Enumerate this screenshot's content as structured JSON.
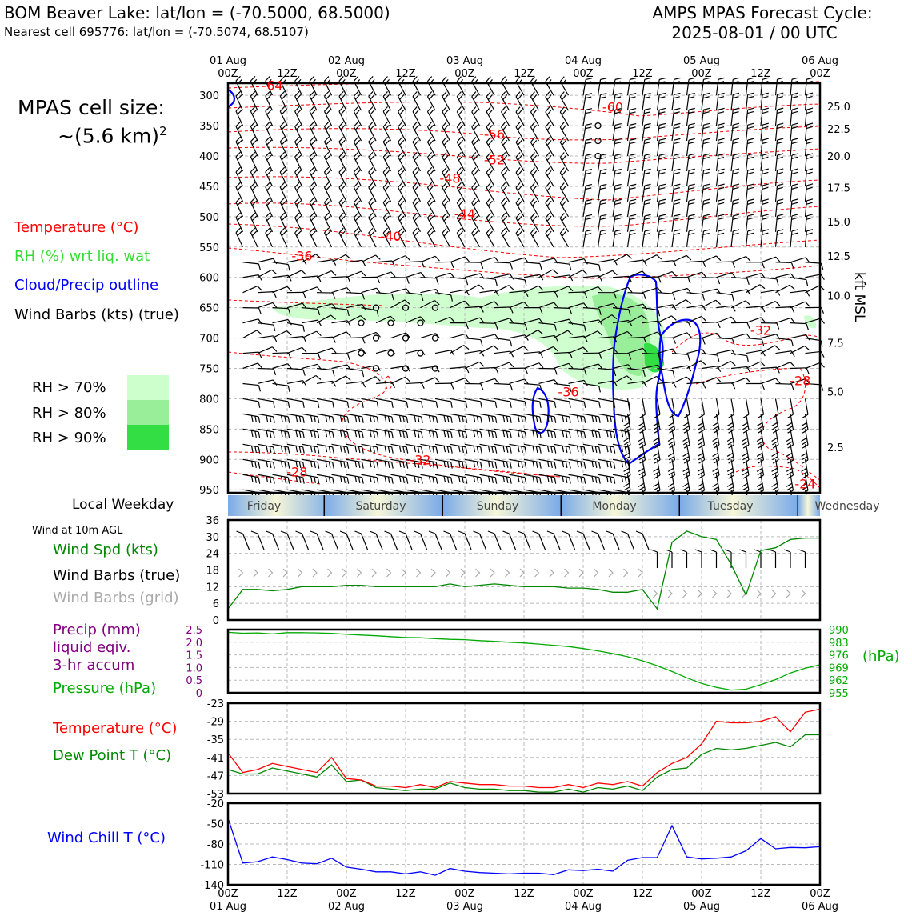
{
  "header": {
    "title_left": "BOM Beaver Lake: lat/lon = (-70.5000, 68.5000)",
    "subtitle_left": "Nearest cell 695776: lat/lon = (-70.5074, 68.5107)",
    "title_right_1": "AMPS MPAS Forecast Cycle:",
    "title_right_2": "2025-08-01 / 00 UTC"
  },
  "left_legend": {
    "cell_size_1": "MPAS cell size:",
    "cell_size_2": "~(5.6 km)",
    "cell_size_sup": "2",
    "temperature": "Temperature (°C)",
    "rh": "RH (%) wrt liq. wat",
    "cloud": "Cloud/Precip outline",
    "wind": "Wind Barbs (kts) (true)",
    "rh70": "RH > 70%",
    "rh80": "RH > 80%",
    "rh90": "RH > 90%",
    "local_weekday": "Local Weekday",
    "wind10": "Wind at 10m AGL",
    "wind_spd": "Wind Spd (kts)",
    "wind_barbs_true": "Wind Barbs (true)",
    "wind_barbs_grid": "Wind Barbs (grid)",
    "precip_1": "Precip (mm)",
    "precip_2": "liquid eqiv.",
    "precip_3": "3-hr accum",
    "pressure": "Pressure (hPa)",
    "temp2": "Temperature (°C)",
    "dewpoint": "Dew Point T (°C)",
    "windchill": "Wind Chill T (°C)",
    "hpa_unit": "(hPa)",
    "kft_label": "kft MSL"
  },
  "colors": {
    "temperature": "#ff0000",
    "rh_text": "#33dd33",
    "cloud": "#0000ff",
    "wind_spd": "#008800",
    "grid_barbs": "#aaaaaa",
    "precip": "#800080",
    "pressure": "#00aa00",
    "windchill": "#0000ff",
    "rh70": "#ccffcc",
    "rh80": "#99ee99",
    "rh90": "#33dd44"
  },
  "time_axis": {
    "top_dates": [
      "01 Aug",
      "",
      "02 Aug",
      "",
      "03 Aug",
      "",
      "04 Aug",
      "",
      "05 Aug",
      "",
      "06 Aug"
    ],
    "hours": [
      "00Z",
      "12Z",
      "00Z",
      "12Z",
      "00Z",
      "12Z",
      "00Z",
      "12Z",
      "00Z",
      "12Z",
      "00Z"
    ],
    "bottom_dates": [
      "01 Aug",
      "",
      "02 Aug",
      "",
      "03 Aug",
      "",
      "04 Aug",
      "",
      "05 Aug",
      "",
      "06 Aug"
    ]
  },
  "weekdays": [
    "Friday",
    "Saturday",
    "Sunday",
    "Monday",
    "Tuesday",
    "Wednesday"
  ],
  "chart_data": [
    {
      "type": "heatmap",
      "name": "time-height cross section",
      "y_pressure_ticks": [
        300,
        350,
        400,
        450,
        500,
        550,
        600,
        650,
        700,
        750,
        800,
        850,
        900,
        950
      ],
      "y_kft_ticks": [
        "25.0",
        "22.5",
        "20.0",
        "17.5",
        "15.0",
        "12.5",
        "10.0",
        "7.5",
        "5.0",
        "2.5"
      ],
      "y_kft_pressures": [
        318,
        355,
        400,
        452,
        508,
        565,
        630,
        708,
        788,
        880
      ],
      "ylim_hpa": [
        280,
        955
      ],
      "xlim_hours": [
        0,
        120
      ],
      "temperature_contour_labels": [
        {
          "label": "-64",
          "t": 9,
          "p": 283
        },
        {
          "label": "-60",
          "t": 78,
          "p": 319
        },
        {
          "label": "-56",
          "t": 54,
          "p": 364
        },
        {
          "label": "-52",
          "t": 54,
          "p": 406
        },
        {
          "label": "-48",
          "t": 45,
          "p": 436
        },
        {
          "label": "-44",
          "t": 48,
          "p": 495
        },
        {
          "label": "-40",
          "t": 33,
          "p": 532
        },
        {
          "label": "-36",
          "t": 15,
          "p": 564
        },
        {
          "label": "-36",
          "t": 69,
          "p": 788
        },
        {
          "label": "-32",
          "t": 108,
          "p": 687
        },
        {
          "label": "-28",
          "t": 116,
          "p": 770
        },
        {
          "label": "-32",
          "t": 39,
          "p": 900
        },
        {
          "label": "-28",
          "t": 14,
          "p": 920
        },
        {
          "label": "-24",
          "t": 117,
          "p": 940
        }
      ]
    },
    {
      "type": "line",
      "name": "wind speed",
      "unit": "kts",
      "ylim": [
        0,
        36
      ],
      "yticks": [
        0,
        6,
        12,
        18,
        24,
        30,
        36
      ],
      "x_hours": [
        0,
        3,
        6,
        9,
        12,
        15,
        18,
        21,
        24,
        27,
        30,
        33,
        36,
        39,
        42,
        45,
        48,
        51,
        54,
        57,
        60,
        63,
        66,
        69,
        72,
        75,
        78,
        81,
        84,
        87,
        90,
        93,
        96,
        99,
        102,
        105,
        108,
        111,
        114,
        117,
        120
      ],
      "values": [
        4,
        11,
        11,
        10.5,
        11,
        12,
        12,
        12,
        12.5,
        12.5,
        12,
        12,
        12,
        12,
        12,
        13,
        12,
        12.5,
        13,
        12.5,
        12,
        12,
        12,
        11.5,
        11.5,
        11,
        10,
        10,
        11,
        4,
        28,
        32,
        30,
        29,
        20,
        9,
        25,
        26,
        29,
        29.5,
        29.5
      ]
    },
    {
      "type": "line",
      "name": "pressure and precip",
      "precip_unit": "mm",
      "precip_ylim": [
        0,
        2.5
      ],
      "precip_yticks": [
        "0",
        "0.5",
        "1.0",
        "1.5",
        "2.0",
        "2.5"
      ],
      "pressure_unit": "hPa",
      "pressure_ylim": [
        955,
        990
      ],
      "pressure_yticks": [
        955,
        962,
        969,
        976,
        983,
        990
      ],
      "x_hours": [
        0,
        3,
        6,
        9,
        12,
        15,
        18,
        21,
        24,
        27,
        30,
        33,
        36,
        39,
        42,
        45,
        48,
        51,
        54,
        57,
        60,
        63,
        66,
        69,
        72,
        75,
        78,
        81,
        84,
        87,
        90,
        93,
        96,
        99,
        102,
        105,
        108,
        111,
        114,
        117,
        120
      ],
      "pressure": [
        988.5,
        988,
        988.2,
        987.6,
        988.3,
        988.3,
        988.2,
        987.9,
        987.4,
        987,
        986.6,
        986.1,
        985.6,
        985.5,
        985,
        984.6,
        984.4,
        983.9,
        983.5,
        983,
        982.6,
        982,
        981.3,
        980.6,
        979.5,
        978.2,
        976.7,
        975,
        972.7,
        970,
        966.8,
        963.3,
        960.2,
        958,
        956.5,
        957,
        959.5,
        962.3,
        966,
        968.6,
        970.5
      ],
      "precip": []
    },
    {
      "type": "line",
      "name": "temperature and dew point",
      "unit": "°C",
      "ylim": [
        -53,
        -23
      ],
      "yticks": [
        -53,
        -47,
        -41,
        -35,
        -29,
        -23
      ],
      "x_hours": [
        0,
        3,
        6,
        9,
        12,
        15,
        18,
        21,
        24,
        27,
        30,
        33,
        36,
        39,
        42,
        45,
        48,
        51,
        54,
        57,
        60,
        63,
        66,
        69,
        72,
        75,
        78,
        81,
        84,
        87,
        90,
        93,
        96,
        99,
        102,
        105,
        108,
        111,
        114,
        117,
        120
      ],
      "temperature": [
        -39.5,
        -46,
        -45,
        -43,
        -44,
        -45,
        -46,
        -41,
        -48,
        -48.5,
        -50.5,
        -50.5,
        -51,
        -50,
        -51,
        -49,
        -49.5,
        -50,
        -50,
        -50.5,
        -50.5,
        -51,
        -51,
        -50,
        -51,
        -49.5,
        -50,
        -49,
        -50.5,
        -46,
        -43,
        -41,
        -36.5,
        -29,
        -29.5,
        -29.5,
        -29,
        -27.5,
        -32.5,
        -26,
        -25
      ],
      "dewpoint": [
        -45,
        -46.5,
        -46.5,
        -44.5,
        -45.5,
        -46.5,
        -47.5,
        -43.5,
        -49,
        -48.5,
        -51,
        -51.5,
        -52,
        -51.5,
        -51.5,
        -49.5,
        -51,
        -51.5,
        -51.5,
        -52,
        -52,
        -52.5,
        -52.5,
        -51.5,
        -52.5,
        -51,
        -51.5,
        -50.5,
        -52,
        -47.5,
        -45,
        -44.5,
        -40,
        -38,
        -38.5,
        -38,
        -37,
        -36,
        -37.5,
        -33.5,
        -33.5
      ]
    },
    {
      "type": "line",
      "name": "wind chill",
      "unit": "°C",
      "ylim": [
        -140,
        -20
      ],
      "yticks": [
        -140,
        -110,
        -80,
        -50,
        -20
      ],
      "x_hours": [
        0,
        3,
        6,
        9,
        12,
        15,
        18,
        21,
        24,
        27,
        30,
        33,
        36,
        39,
        42,
        45,
        48,
        51,
        54,
        57,
        60,
        63,
        66,
        69,
        72,
        75,
        78,
        81,
        84,
        87,
        90,
        93,
        96,
        99,
        102,
        105,
        108,
        111,
        114,
        117,
        120
      ],
      "values": [
        -42,
        -108,
        -106,
        -99,
        -103,
        -108,
        -109,
        -101,
        -114,
        -117,
        -121,
        -121,
        -124,
        -121,
        -126,
        -116,
        -120,
        -122,
        -123,
        -124,
        -123,
        -123,
        -125,
        -118,
        -119,
        -117,
        -120,
        -104,
        -100,
        -100,
        -53,
        -99,
        -102,
        -101,
        -99,
        -90,
        -72,
        -87,
        -85,
        -85.5,
        -84
      ]
    }
  ]
}
